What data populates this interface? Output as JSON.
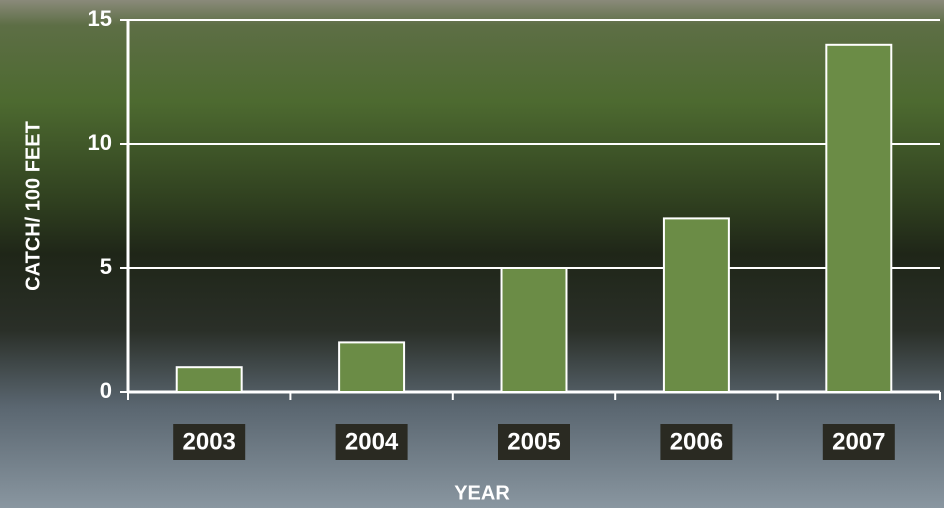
{
  "chart_data": {
    "type": "bar",
    "x_label": "YEAR",
    "y_label": "CATCH/ 100 FEET",
    "categories": [
      "2003",
      "2004",
      "2005",
      "2006",
      "2007"
    ],
    "values": [
      1,
      2,
      5,
      7,
      14
    ],
    "color": "#6b8c46",
    "ylim": [
      0,
      15
    ],
    "yticks": [
      0,
      5,
      10,
      15
    ],
    "grid": true
  }
}
